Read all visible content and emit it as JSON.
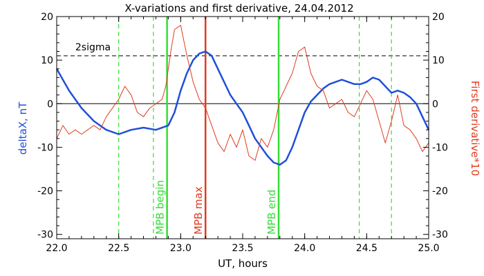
{
  "chart_data": {
    "type": "line",
    "title": "X-variations and first derivative, 24.04.2012",
    "xlabel": "UT, hours",
    "ylabel_left": "deltaX, nT",
    "ylabel_right": "First derivative*10",
    "xlim": [
      22.0,
      25.0
    ],
    "ylim": [
      -31,
      20
    ],
    "x_ticks": [
      "22.0",
      "22.5",
      "23.0",
      "23.5",
      "24.0",
      "24.5",
      "25.0"
    ],
    "x_tick_values": [
      22.0,
      22.5,
      23.0,
      23.5,
      24.0,
      24.5,
      25.0
    ],
    "y_ticks": [
      "20",
      "10",
      "0",
      "-10",
      "-20",
      "-30"
    ],
    "y_tick_values": [
      20,
      10,
      0,
      -10,
      -20,
      -30
    ],
    "colors": {
      "deltaX": "#1f4fd8",
      "derivative": "#e03a1e",
      "mpb": "#33dd33",
      "max": "#e03a1e",
      "axes": "#000000"
    },
    "sigma_level": 11,
    "sigma_label": "2sigma",
    "series": [
      {
        "key": "deltaX",
        "x": [
          22.0,
          22.1,
          22.2,
          22.3,
          22.4,
          22.5,
          22.6,
          22.7,
          22.8,
          22.9,
          22.95,
          23.0,
          23.05,
          23.1,
          23.15,
          23.2,
          23.25,
          23.3,
          23.35,
          23.4,
          23.45,
          23.5,
          23.55,
          23.6,
          23.65,
          23.7,
          23.75,
          23.8,
          23.85,
          23.9,
          23.95,
          24.0,
          24.05,
          24.1,
          24.15,
          24.2,
          24.25,
          24.3,
          24.35,
          24.4,
          24.45,
          24.5,
          24.55,
          24.6,
          24.65,
          24.7,
          24.75,
          24.8,
          24.85,
          24.9,
          24.95,
          25.0
        ],
        "y": [
          8,
          3,
          -1,
          -4,
          -6,
          -7,
          -6,
          -5.5,
          -6,
          -5,
          -2,
          3,
          7,
          10,
          11.5,
          12,
          11,
          8,
          5,
          2,
          0,
          -2,
          -5,
          -8,
          -10,
          -12,
          -13.5,
          -14,
          -13,
          -10,
          -6,
          -2,
          0.5,
          2,
          3.5,
          4.5,
          5,
          5.5,
          5,
          4.5,
          4.5,
          5,
          6,
          5.5,
          4,
          2.5,
          3,
          2.5,
          1.5,
          0,
          -3,
          -6
        ]
      },
      {
        "key": "derivative",
        "x": [
          22.0,
          22.05,
          22.1,
          22.15,
          22.2,
          22.25,
          22.3,
          22.35,
          22.4,
          22.45,
          22.5,
          22.55,
          22.6,
          22.65,
          22.7,
          22.75,
          22.8,
          22.85,
          22.88,
          22.92,
          22.95,
          23.0,
          23.05,
          23.1,
          23.15,
          23.2,
          23.25,
          23.3,
          23.35,
          23.4,
          23.45,
          23.5,
          23.55,
          23.6,
          23.65,
          23.7,
          23.75,
          23.8,
          23.85,
          23.9,
          23.95,
          24.0,
          24.05,
          24.1,
          24.15,
          24.2,
          24.25,
          24.3,
          24.35,
          24.4,
          24.45,
          24.5,
          24.55,
          24.6,
          24.65,
          24.7,
          24.75,
          24.8,
          24.85,
          24.9,
          24.95,
          25.0
        ],
        "y": [
          -8,
          -5,
          -7,
          -6,
          -7,
          -6,
          -5,
          -6,
          -3,
          -1,
          1,
          4,
          2,
          -2,
          -3,
          -1,
          0,
          1,
          4,
          12,
          17,
          18,
          11,
          5,
          1,
          -1,
          -5,
          -9,
          -11,
          -7,
          -10,
          -6,
          -12,
          -13,
          -8,
          -10,
          -6,
          1,
          4,
          7,
          12,
          13,
          7,
          4,
          3,
          -1,
          0,
          1,
          -2,
          -3,
          0,
          3,
          1,
          -4,
          -9,
          -4,
          2,
          -5,
          -6,
          -8,
          -11,
          -9
        ]
      }
    ],
    "markers": [
      {
        "x": 22.5,
        "style": "dash",
        "color": "mpb"
      },
      {
        "x": 22.78,
        "style": "dash",
        "color": "mpb"
      },
      {
        "x": 24.44,
        "style": "dash",
        "color": "mpb"
      },
      {
        "x": 24.7,
        "style": "dash",
        "color": "mpb"
      },
      {
        "x": 22.89,
        "style": "solid",
        "color": "mpb",
        "label": "MPB begin"
      },
      {
        "x": 23.2,
        "style": "solid",
        "color": "max",
        "label": "MPB max"
      },
      {
        "x": 23.79,
        "style": "solid",
        "color": "mpb",
        "label": "MPB end"
      }
    ]
  }
}
